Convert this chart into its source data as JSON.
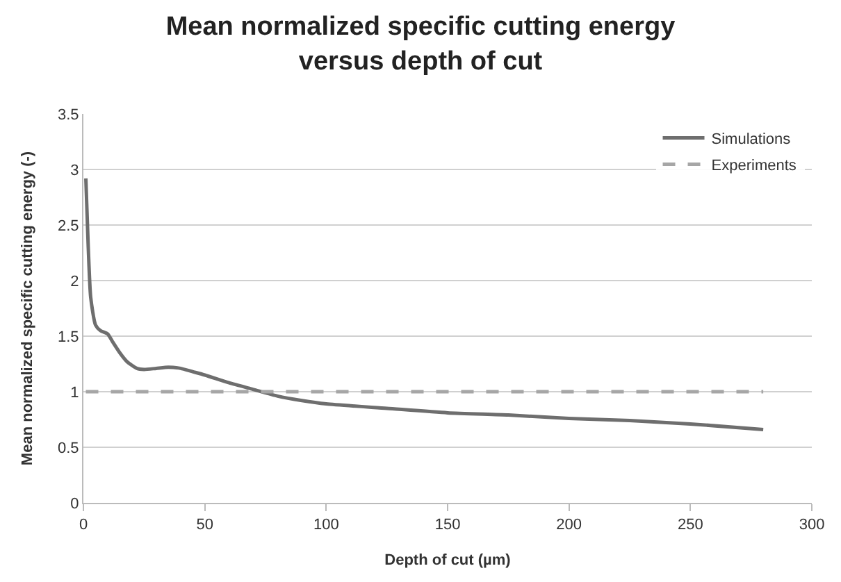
{
  "chart_data": {
    "type": "line",
    "title": "Mean normalized specific cutting energy\nversus depth of cut",
    "xlabel": "Depth of cut (µm)",
    "ylabel": "Mean normalized specific cutting energy (-)",
    "xlim": [
      0,
      300
    ],
    "xticks": [
      0,
      50,
      100,
      150,
      200,
      250,
      300
    ],
    "ylim": [
      0,
      3.5
    ],
    "yticks": [
      0,
      0.5,
      1,
      1.5,
      2,
      2.5,
      3,
      3.5
    ],
    "grid": "y",
    "legend": "top right",
    "series": [
      {
        "name": "Simulations",
        "color": "#6e6e6e",
        "line_style": "solid",
        "x": [
          1,
          2,
          3,
          5,
          7,
          10,
          12,
          15,
          18,
          22,
          25,
          30,
          35,
          40,
          45,
          50,
          60,
          70,
          80,
          90,
          100,
          125,
          150,
          175,
          200,
          225,
          250,
          280
        ],
        "values": [
          2.92,
          2.3,
          1.85,
          1.6,
          1.55,
          1.52,
          1.45,
          1.35,
          1.27,
          1.21,
          1.2,
          1.21,
          1.22,
          1.21,
          1.18,
          1.15,
          1.08,
          1.02,
          0.96,
          0.92,
          0.89,
          0.85,
          0.81,
          0.79,
          0.76,
          0.74,
          0.71,
          0.66
        ]
      },
      {
        "name": "Experiments",
        "color": "#a6a6a6",
        "line_style": "dashed",
        "x": [
          1,
          280
        ],
        "values": [
          1,
          1
        ]
      }
    ]
  }
}
